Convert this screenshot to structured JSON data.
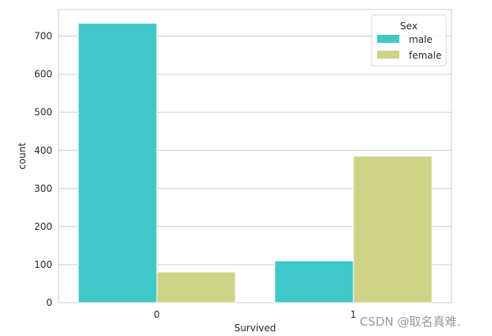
{
  "chart_data": {
    "type": "bar",
    "xlabel": "Survived",
    "ylabel": "count",
    "categories": [
      "0",
      "1"
    ],
    "series": [
      {
        "name": "male",
        "values": [
          734,
          110
        ],
        "color": "#40c8c8"
      },
      {
        "name": "female",
        "values": [
          81,
          385
        ],
        "color": "#cdd488"
      }
    ],
    "ylim": [
      0,
      770
    ],
    "yticks": [
      0,
      100,
      200,
      300,
      400,
      500,
      600,
      700
    ],
    "grid": true,
    "legend": {
      "title": "Sex",
      "placement": "top-right"
    }
  },
  "watermark": "CSDN @取名真难."
}
